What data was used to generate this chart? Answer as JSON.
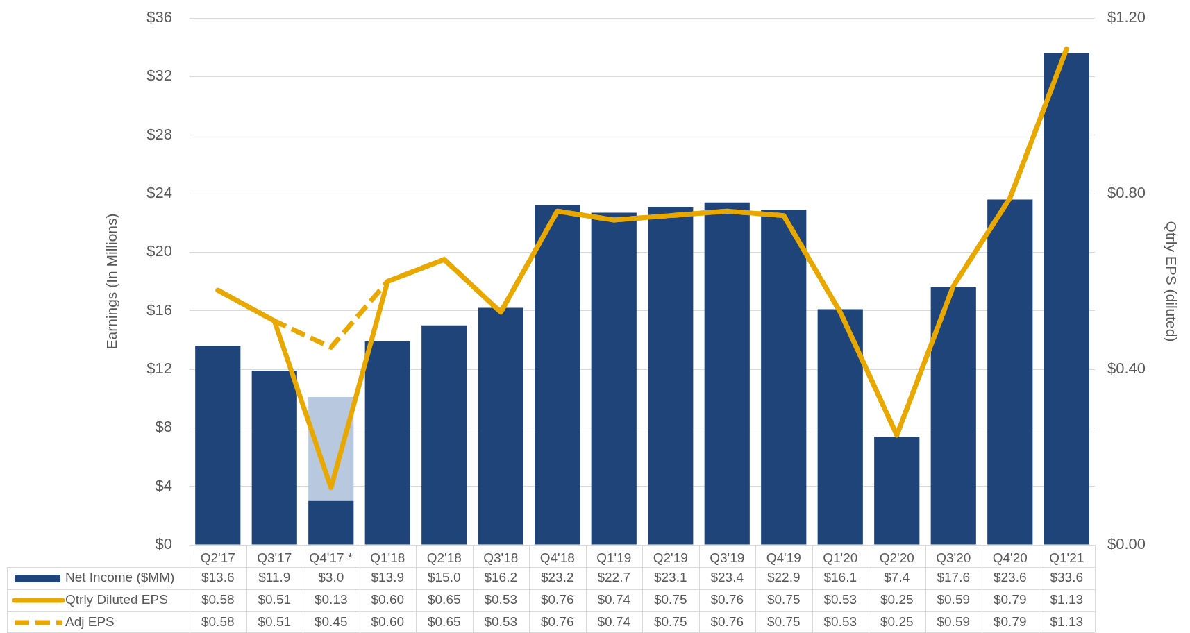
{
  "chart_data": {
    "type": "bar",
    "ylabel": "Earnings (In Millions)",
    "y2label": "Qtrly EPS (diluted)",
    "categories": [
      "Q2'17",
      "Q3'17",
      "Q4'17 *",
      "Q1'18",
      "Q2'18",
      "Q3'18",
      "Q4'18",
      "Q1'19",
      "Q2'19",
      "Q3'19",
      "Q4'19",
      "Q1'20",
      "Q2'20",
      "Q3'20",
      "Q4'20",
      "Q1'21"
    ],
    "series": [
      {
        "name": "Net Income ($MM)",
        "color": "#1f4479",
        "values": [
          13.6,
          11.9,
          3.0,
          13.9,
          15.0,
          16.2,
          23.2,
          22.7,
          23.1,
          23.4,
          22.9,
          16.1,
          7.4,
          17.6,
          23.6,
          33.6
        ],
        "value_labels": [
          "$13.6",
          "$11.9",
          "$3.0",
          "$13.9",
          "$15.0",
          "$16.2",
          "$23.2",
          "$22.7",
          "$23.1",
          "$23.4",
          "$22.9",
          "$16.1",
          "$7.4",
          "$17.6",
          "$23.6",
          "$33.6"
        ]
      },
      {
        "color": "#b7c8df",
        "values": [
          null,
          null,
          7.1,
          null,
          null,
          null,
          null,
          null,
          null,
          null,
          null,
          null,
          null,
          null,
          null,
          null
        ]
      },
      {
        "name": "Qtrly Diluted EPS",
        "type": "line",
        "axis": "y2",
        "color": "#e9a800",
        "line_style": "solid",
        "values": [
          0.58,
          0.51,
          0.13,
          0.6,
          0.65,
          0.53,
          0.76,
          0.74,
          0.75,
          0.76,
          0.75,
          0.53,
          0.25,
          0.59,
          0.79,
          1.13
        ],
        "value_labels": [
          "$0.58",
          "$0.51",
          "$0.13",
          "$0.60",
          "$0.65",
          "$0.53",
          "$0.76",
          "$0.74",
          "$0.75",
          "$0.76",
          "$0.75",
          "$0.53",
          "$0.25",
          "$0.59",
          "$0.79",
          "$1.13"
        ]
      },
      {
        "name": "Adj EPS",
        "type": "line",
        "axis": "y2",
        "color": "#e9a800",
        "line_style": "dashed",
        "values": [
          0.58,
          0.51,
          0.45,
          0.6,
          0.65,
          0.53,
          0.76,
          0.74,
          0.75,
          0.76,
          0.75,
          0.53,
          0.25,
          0.59,
          0.79,
          1.13
        ],
        "value_labels": [
          "$0.58",
          "$0.51",
          "$0.45",
          "$0.60",
          "$0.65",
          "$0.53",
          "$0.76",
          "$0.74",
          "$0.75",
          "$0.76",
          "$0.75",
          "$0.53",
          "$0.25",
          "$0.59",
          "$0.79",
          "$1.13"
        ]
      }
    ],
    "stacked": true,
    "ylim": [
      0,
      36
    ],
    "yticks": [
      {
        "value": 0,
        "label": "$0"
      },
      {
        "value": 4,
        "label": "$4"
      },
      {
        "value": 8,
        "label": "$8"
      },
      {
        "value": 12,
        "label": "$12"
      },
      {
        "value": 16,
        "label": "$16"
      },
      {
        "value": 20,
        "label": "$20"
      },
      {
        "value": 24,
        "label": "$24"
      },
      {
        "value": 28,
        "label": "$28"
      },
      {
        "value": 32,
        "label": "$32"
      },
      {
        "value": 36,
        "label": "$36"
      }
    ],
    "y2lim": [
      0,
      1.2
    ],
    "y2ticks": [
      {
        "value": 0,
        "label": "$0.00"
      },
      {
        "value": 0.4,
        "label": "$0.40"
      },
      {
        "value": 0.8,
        "label": "$0.80"
      },
      {
        "value": 1.2,
        "label": "$1.20"
      }
    ],
    "grid": "y",
    "legend": "bottom left",
    "marker": "none"
  }
}
